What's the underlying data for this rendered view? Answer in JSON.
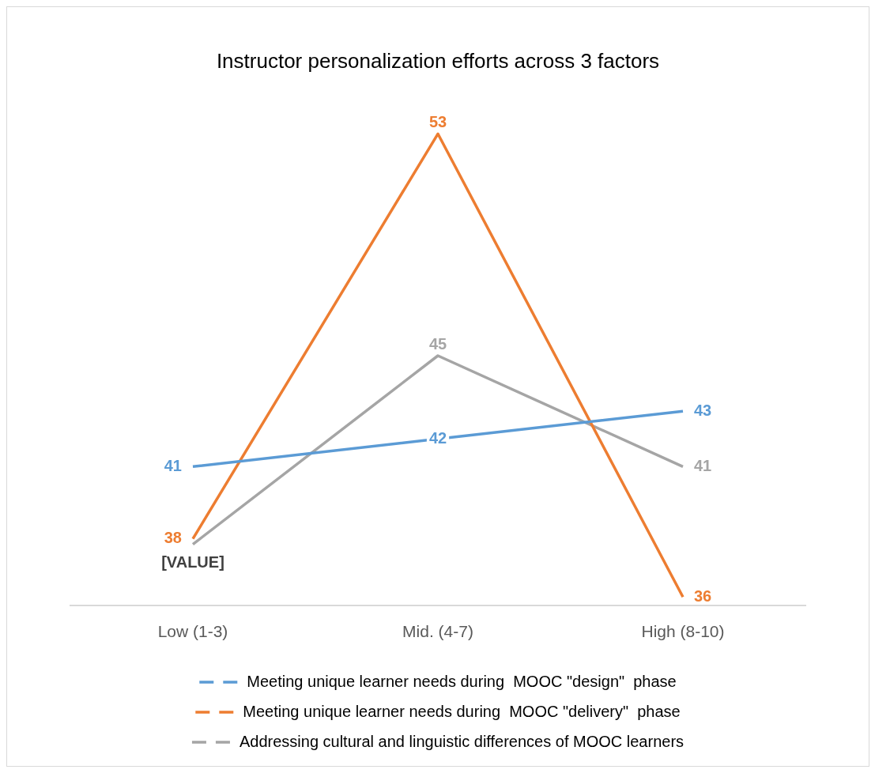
{
  "chart_data": {
    "type": "line",
    "title": "Instructor personalization efforts across 3 factors",
    "categories": [
      "Low (1-3)",
      "Mid. (4-7)",
      "High (8-10)"
    ],
    "grid": false,
    "legend": "bottom",
    "tick_labels": "x",
    "marker": "none",
    "line_style": "solid",
    "series": [
      {
        "name": "Meeting unique learner needs during  MOOC \"design\"  phase",
        "color": "#5b9bd5",
        "values": [
          41,
          42,
          43
        ],
        "value_labels": [
          "41",
          "42",
          "43"
        ]
      },
      {
        "name": "Meeting unique learner needs during  MOOC \"delivery\"  phase",
        "color": "#ed7d31",
        "values": [
          38.4,
          53,
          36.3
        ],
        "value_labels": [
          "38",
          "53",
          "36"
        ]
      },
      {
        "name": "Addressing cultural and linguistic differences of MOOC learners",
        "color": "#a5a5a5",
        "values": [
          38.2,
          45,
          41
        ],
        "value_labels": [
          "[VALUE]",
          "45",
          "41"
        ]
      }
    ]
  }
}
